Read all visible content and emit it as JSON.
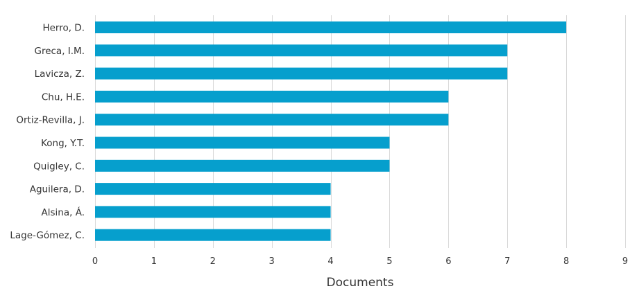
{
  "chart_data": {
    "type": "bar",
    "orientation": "horizontal",
    "categories": [
      "Herro, D.",
      "Greca, I.M.",
      "Lavicza, Z.",
      "Chu, H.E.",
      "Ortiz-Revilla, J.",
      "Kong, Y.T.",
      "Quigley, C.",
      "Aguilera, D.",
      "Alsina, Á.",
      "Lage-Gómez, C."
    ],
    "values": [
      8,
      7,
      7,
      6,
      6,
      5,
      5,
      4,
      4,
      4
    ],
    "xlabel": "Documents",
    "ylabel": "",
    "xlim": [
      0,
      9
    ],
    "xticks": [
      "0",
      "1",
      "2",
      "3",
      "4",
      "5",
      "6",
      "7",
      "8",
      "9"
    ],
    "grid": "vertical",
    "bar_color": "#069fcd",
    "grid_color": "#d9d9d9"
  }
}
